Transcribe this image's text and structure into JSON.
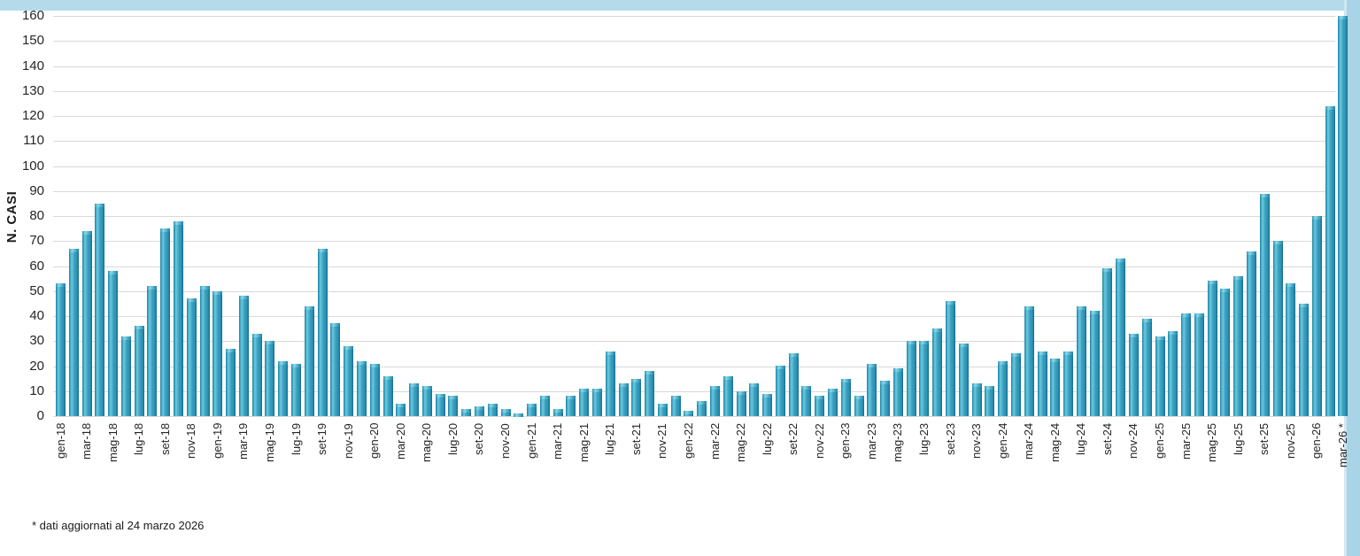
{
  "page": {
    "footnote": "* dati aggiornati al 24 marzo 2026"
  },
  "colors": {
    "bar_main": "#2e95b8",
    "bar_highlight": "#6cc8de",
    "bar_dark_edge": "#176c8c",
    "gridline": "#d9d9d9",
    "border_band": "#aed7e8",
    "text": "#262626"
  },
  "chart_data": {
    "type": "bar",
    "title": "",
    "xlabel": "",
    "ylabel": "N. CASI",
    "ylim": [
      0,
      160
    ],
    "ytick_step": 10,
    "grid": "horizontal",
    "legend": "none",
    "tick_label_rule": "every second category, rotated 90 degrees",
    "categories": [
      "gen-18",
      "feb-18",
      "mar-18",
      "apr-18",
      "mag-18",
      "giu-18",
      "lug-18",
      "ago-18",
      "set-18",
      "ott-18",
      "nov-18",
      "dic-18",
      "gen-19",
      "feb-19",
      "mar-19",
      "apr-19",
      "mag-19",
      "giu-19",
      "lug-19",
      "ago-19",
      "set-19",
      "ott-19",
      "nov-19",
      "dic-19",
      "gen-20",
      "feb-20",
      "mar-20",
      "apr-20",
      "mag-20",
      "giu-20",
      "lug-20",
      "ago-20",
      "set-20",
      "ott-20",
      "nov-20",
      "dic-20",
      "gen-21",
      "feb-21",
      "mar-21",
      "apr-21",
      "mag-21",
      "giu-21",
      "lug-21",
      "ago-21",
      "set-21",
      "ott-21",
      "nov-21",
      "dic-21",
      "gen-22",
      "feb-22",
      "mar-22",
      "apr-22",
      "mag-22",
      "giu-22",
      "lug-22",
      "ago-22",
      "set-22",
      "ott-22",
      "nov-22",
      "dic-22",
      "gen-23",
      "feb-23",
      "mar-23",
      "apr-23",
      "mag-23",
      "giu-23",
      "lug-23",
      "ago-23",
      "set-23",
      "ott-23",
      "nov-23",
      "dic-23",
      "gen-24",
      "feb-24",
      "mar-24",
      "apr-24",
      "mag-24",
      "giu-24",
      "lug-24",
      "ago-24",
      "set-24",
      "ott-24",
      "nov-24",
      "dic-24",
      "gen-25",
      "feb-25",
      "mar-25",
      "apr-25",
      "mag-25",
      "giu-25",
      "lug-25",
      "ago-25",
      "set-25",
      "ott-25",
      "nov-25",
      "dic-25",
      "gen-26",
      "feb-26",
      "mar-26"
    ],
    "values": [
      53,
      67,
      74,
      85,
      58,
      32,
      36,
      52,
      75,
      78,
      47,
      52,
      50,
      27,
      48,
      33,
      30,
      22,
      21,
      44,
      67,
      37,
      28,
      22,
      21,
      16,
      5,
      13,
      12,
      9,
      8,
      3,
      4,
      5,
      3,
      1,
      5,
      8,
      3,
      8,
      11,
      11,
      26,
      13,
      15,
      18,
      5,
      8,
      2,
      6,
      12,
      16,
      10,
      13,
      9,
      20,
      25,
      12,
      8,
      11,
      15,
      8,
      21,
      14,
      19,
      30,
      30,
      35,
      46,
      29,
      13,
      12,
      22,
      25,
      44,
      26,
      23,
      26,
      44,
      42,
      59,
      63,
      33,
      39,
      32,
      34,
      41,
      41,
      54,
      51,
      56,
      66,
      89,
      70,
      53,
      45,
      80,
      124,
      160
    ],
    "visible_tick_labels": [
      "gen-18",
      "mar-18",
      "mag-18",
      "lug-18",
      "set-18",
      "nov-18",
      "gen-19",
      "mar-19",
      "mag-19",
      "lug-19",
      "set-19",
      "nov-19",
      "gen-20",
      "mar-20",
      "mag-20",
      "lug-20",
      "set-20",
      "nov-20",
      "gen-21",
      "mar-21",
      "mag-21",
      "lug-21",
      "set-21",
      "nov-21",
      "gen-22",
      "mar-22",
      "mag-22",
      "lug-22",
      "set-22",
      "nov-22",
      "gen-23",
      "mar-23",
      "mag-23",
      "lug-23",
      "set-23",
      "nov-23",
      "gen-24",
      "mar-24",
      "mag-24",
      "lug-24",
      "set-24",
      "nov-24",
      "gen-25",
      "mar-25",
      "mag-25",
      "lug-25",
      "set-25",
      "nov-25",
      "gen-26",
      "mar-26 *"
    ]
  }
}
